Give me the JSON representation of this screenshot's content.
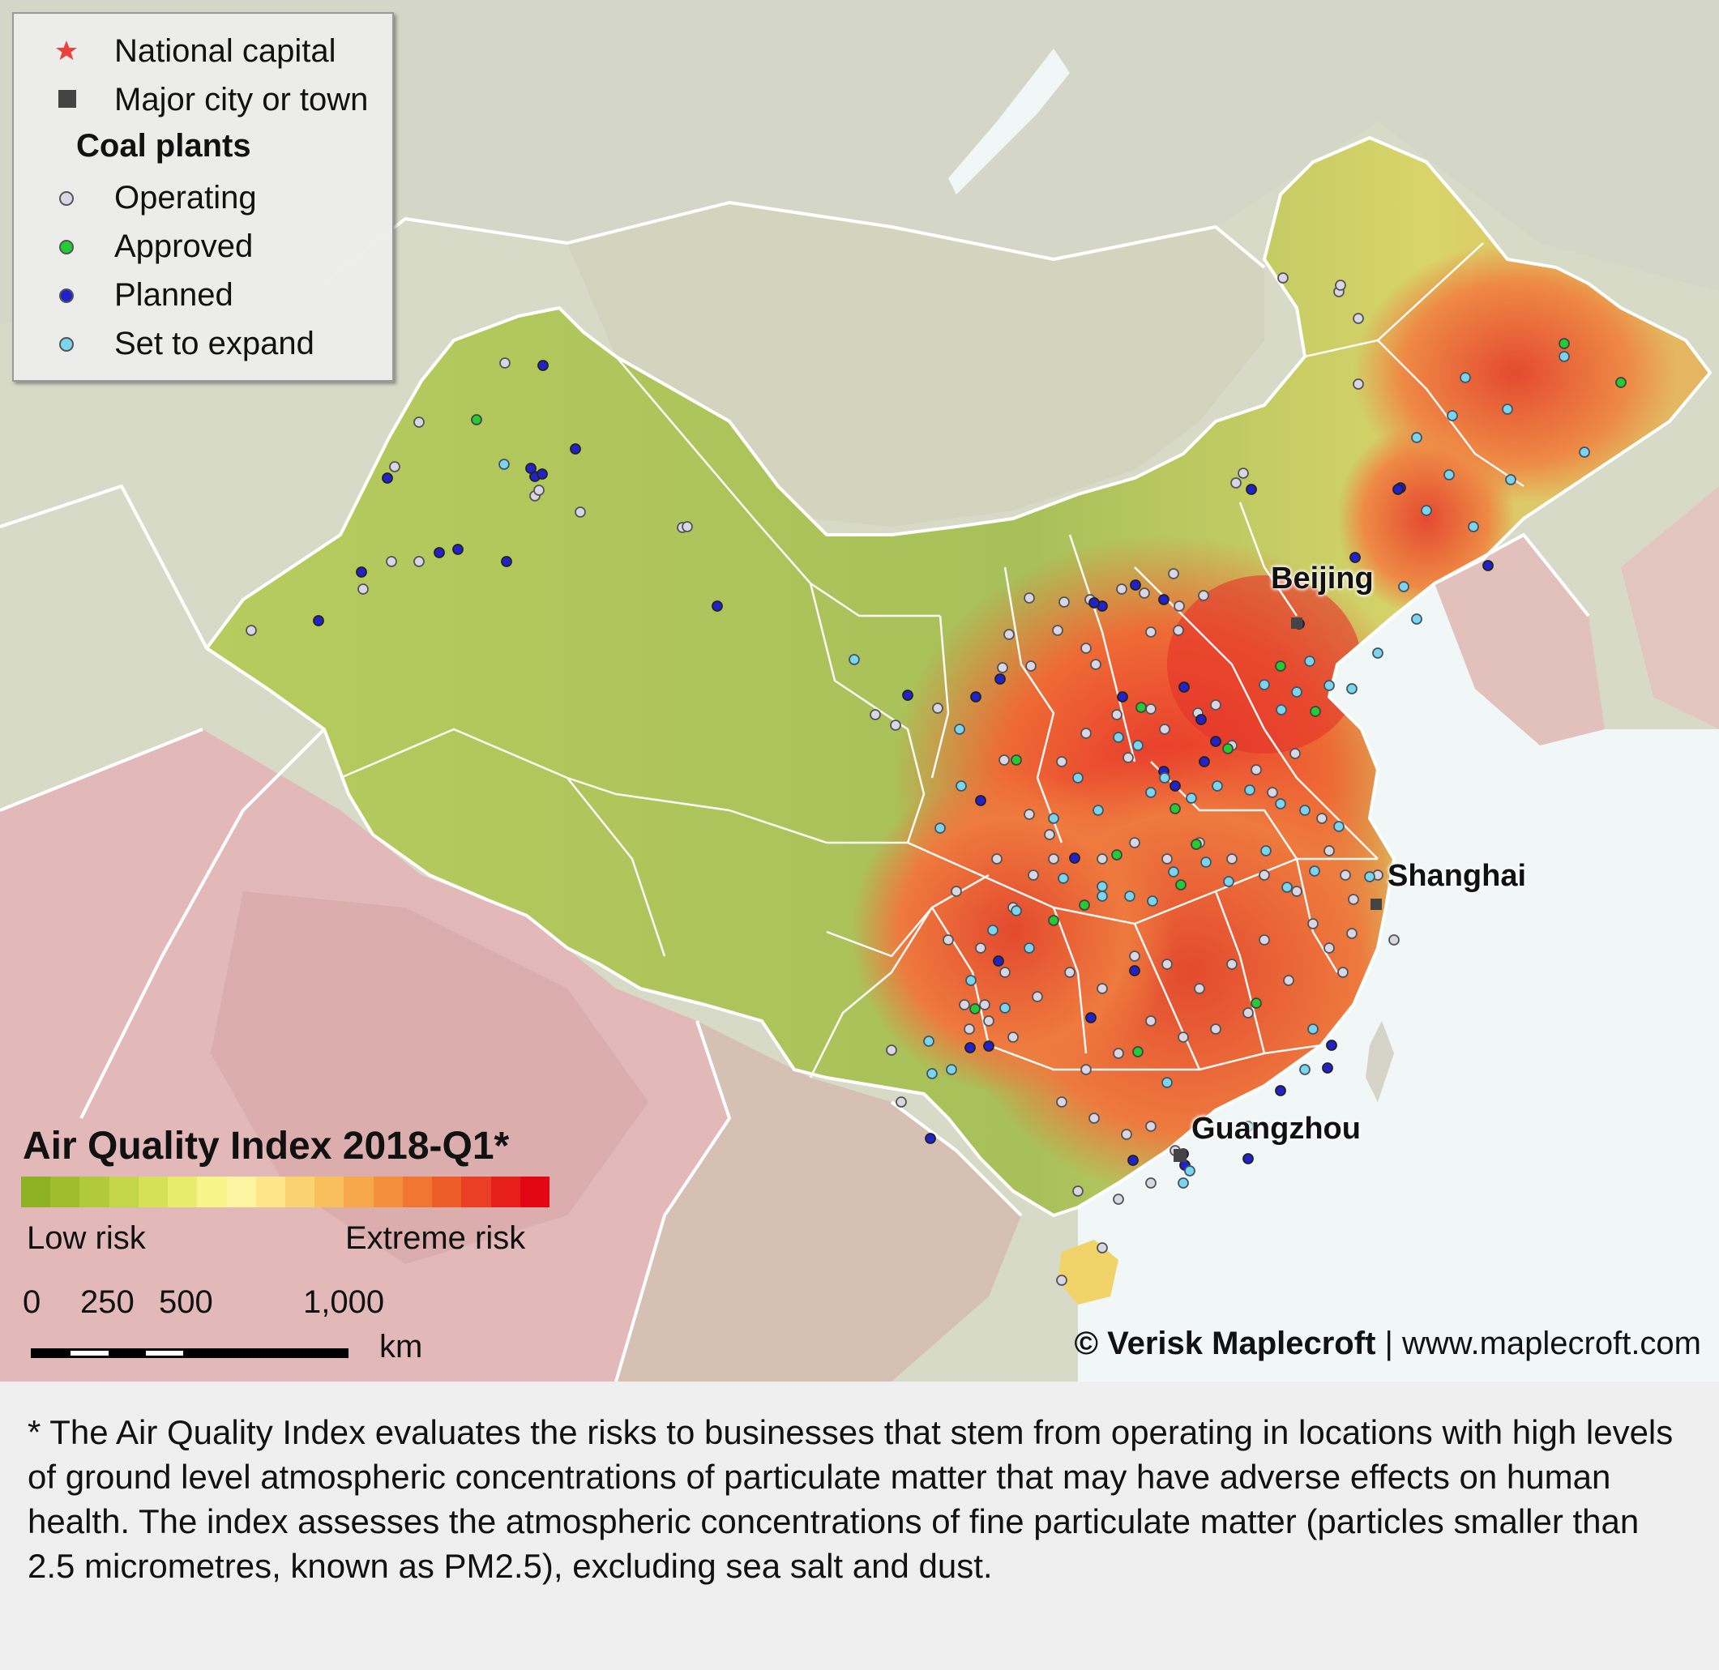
{
  "legend": {
    "national_capital": "National capital",
    "major_city": "Major city or town",
    "coal_plants_heading": "Coal plants",
    "operating": "Operating",
    "approved": "Approved",
    "planned": "Planned",
    "set_to_expand": "Set to expand"
  },
  "colors": {
    "capital_star": "#e8423a",
    "major_city": "#444444",
    "operating": "#d9d6e6",
    "approved": "#22cc33",
    "planned": "#2222cc",
    "set_to_expand": "#7ad6ee",
    "water": "#f0f6f8",
    "china_low": "#a8c25a",
    "china_high": "#e84a2c"
  },
  "cities": {
    "beijing": "Beijing",
    "shanghai": "Shanghai",
    "guangzhou": "Guangzhou"
  },
  "aqi_legend": {
    "title": "Air Quality Index 2018-Q1*",
    "low": "Low risk",
    "high": "Extreme risk",
    "scale_colors": [
      "#8db123",
      "#9fbd2e",
      "#b1c93a",
      "#c3d548",
      "#d5e158",
      "#e7ec6c",
      "#f7f58a",
      "#fdf3a0",
      "#fde58a",
      "#fbd270",
      "#f9bf5c",
      "#f7a84a",
      "#f4903c",
      "#f17632",
      "#ee5c2a",
      "#ea3f24",
      "#e61f1c",
      "#e30613"
    ]
  },
  "scale_bar": {
    "ticks": [
      "0",
      "250",
      "500",
      "1,000"
    ],
    "unit": "km"
  },
  "credit": {
    "brand": "© Verisk Maplecroft",
    "separator": " | ",
    "url": "www.maplecroft.com"
  },
  "footnote": "* The Air Quality Index evaluates the risks to businesses that stem from operating in locations with high levels of ground level atmospheric concentrations of particulate matter that may have adverse effects on human health. The index assesses the atmospheric concentrations of fine particulate matter (particles smaller than 2.5 micrometres, known as PM2.5), excluding sea salt and dust."
}
